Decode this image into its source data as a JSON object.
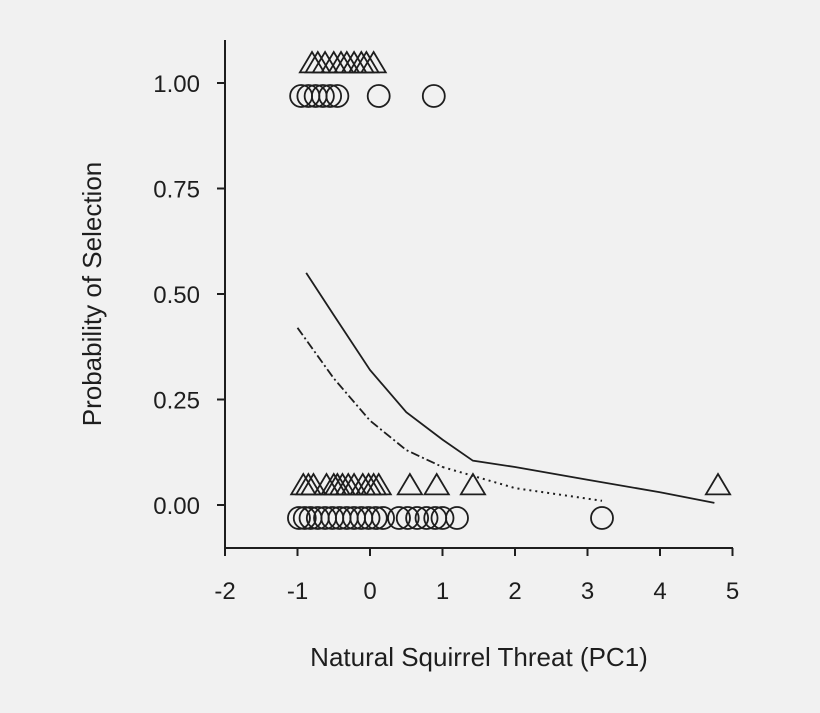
{
  "colors": {
    "background": "#f1f1f1",
    "ink": "#1e1e1e"
  },
  "chart_data": {
    "type": "scatter",
    "title": "",
    "xlabel": "Natural Squirrel Threat (PC1)",
    "ylabel": "Probability of Selection",
    "xlim": [
      -2,
      5
    ],
    "ylim": [
      -0.1,
      1.1
    ],
    "xticks": [
      -2,
      -1,
      0,
      1,
      2,
      3,
      4,
      5
    ],
    "xtick_labels": [
      "-2",
      "-1",
      "0",
      "1",
      "2",
      "3",
      "4",
      "5"
    ],
    "yticks": [
      0,
      0.25,
      0.5,
      0.75,
      1
    ],
    "ytick_labels": [
      "0.00",
      "0.25",
      "0.50",
      "0.75",
      "1.00"
    ],
    "grid": false,
    "legend": "none",
    "series": [
      {
        "kind": "points",
        "marker": "triangle",
        "points": [
          {
            "x": -0.8,
            "y": 1.0
          },
          {
            "x": -0.72,
            "y": 1.0
          },
          {
            "x": -0.62,
            "y": 1.0
          },
          {
            "x": -0.5,
            "y": 1.0
          },
          {
            "x": -0.4,
            "y": 1.0
          },
          {
            "x": -0.32,
            "y": 1.0
          },
          {
            "x": -0.22,
            "y": 1.0
          },
          {
            "x": -0.12,
            "y": 1.0
          },
          {
            "x": -0.05,
            "y": 1.0
          },
          {
            "x": 0.05,
            "y": 1.0
          },
          {
            "x": -0.92,
            "y": 0.0
          },
          {
            "x": -0.85,
            "y": 0.0
          },
          {
            "x": -0.78,
            "y": 0.0
          },
          {
            "x": -0.6,
            "y": 0.0
          },
          {
            "x": -0.5,
            "y": 0.0
          },
          {
            "x": -0.45,
            "y": 0.0
          },
          {
            "x": -0.38,
            "y": 0.0
          },
          {
            "x": -0.3,
            "y": 0.0
          },
          {
            "x": -0.22,
            "y": 0.0
          },
          {
            "x": -0.1,
            "y": 0.0
          },
          {
            "x": -0.02,
            "y": 0.0
          },
          {
            "x": 0.05,
            "y": 0.0
          },
          {
            "x": 0.12,
            "y": 0.0
          },
          {
            "x": 0.55,
            "y": 0.0
          },
          {
            "x": 0.92,
            "y": 0.0
          },
          {
            "x": 1.42,
            "y": 0.0
          },
          {
            "x": 4.8,
            "y": 0.0
          }
        ]
      },
      {
        "kind": "points",
        "marker": "circle",
        "points": [
          {
            "x": -0.95,
            "y": 1.0
          },
          {
            "x": -0.85,
            "y": 1.0
          },
          {
            "x": -0.75,
            "y": 1.0
          },
          {
            "x": -0.65,
            "y": 1.0
          },
          {
            "x": -0.55,
            "y": 1.0
          },
          {
            "x": -0.45,
            "y": 1.0
          },
          {
            "x": 0.12,
            "y": 1.0
          },
          {
            "x": 0.88,
            "y": 1.0
          },
          {
            "x": -0.98,
            "y": 0.0
          },
          {
            "x": -0.9,
            "y": 0.0
          },
          {
            "x": -0.82,
            "y": 0.0
          },
          {
            "x": -0.72,
            "y": 0.0
          },
          {
            "x": -0.62,
            "y": 0.0
          },
          {
            "x": -0.52,
            "y": 0.0
          },
          {
            "x": -0.42,
            "y": 0.0
          },
          {
            "x": -0.32,
            "y": 0.0
          },
          {
            "x": -0.22,
            "y": 0.0
          },
          {
            "x": -0.12,
            "y": 0.0
          },
          {
            "x": -0.02,
            "y": 0.0
          },
          {
            "x": 0.08,
            "y": 0.0
          },
          {
            "x": 0.18,
            "y": 0.0
          },
          {
            "x": 0.4,
            "y": 0.0
          },
          {
            "x": 0.52,
            "y": 0.0
          },
          {
            "x": 0.65,
            "y": 0.0
          },
          {
            "x": 0.78,
            "y": 0.0
          },
          {
            "x": 0.9,
            "y": 0.0
          },
          {
            "x": 1.0,
            "y": 0.0
          },
          {
            "x": 1.2,
            "y": 0.0
          },
          {
            "x": 3.2,
            "y": 0.0
          }
        ]
      },
      {
        "kind": "line",
        "style": "solid",
        "points": [
          {
            "x": -0.88,
            "y": 0.55
          },
          {
            "x": -0.5,
            "y": 0.45
          },
          {
            "x": 0.0,
            "y": 0.32
          },
          {
            "x": 0.5,
            "y": 0.22
          },
          {
            "x": 1.0,
            "y": 0.155
          },
          {
            "x": 1.42,
            "y": 0.105
          },
          {
            "x": 2.0,
            "y": 0.09
          },
          {
            "x": 3.0,
            "y": 0.06
          },
          {
            "x": 4.0,
            "y": 0.03
          },
          {
            "x": 4.75,
            "y": 0.005
          }
        ]
      },
      {
        "kind": "line",
        "style": "dash-dot",
        "points": [
          {
            "x": -1.0,
            "y": 0.42
          },
          {
            "x": -0.5,
            "y": 0.3
          },
          {
            "x": 0.0,
            "y": 0.2
          },
          {
            "x": 0.5,
            "y": 0.13
          },
          {
            "x": 1.0,
            "y": 0.09
          }
        ]
      },
      {
        "kind": "line",
        "style": "dotted",
        "points": [
          {
            "x": 1.0,
            "y": 0.09
          },
          {
            "x": 2.0,
            "y": 0.04
          },
          {
            "x": 3.2,
            "y": 0.01
          }
        ]
      }
    ]
  }
}
